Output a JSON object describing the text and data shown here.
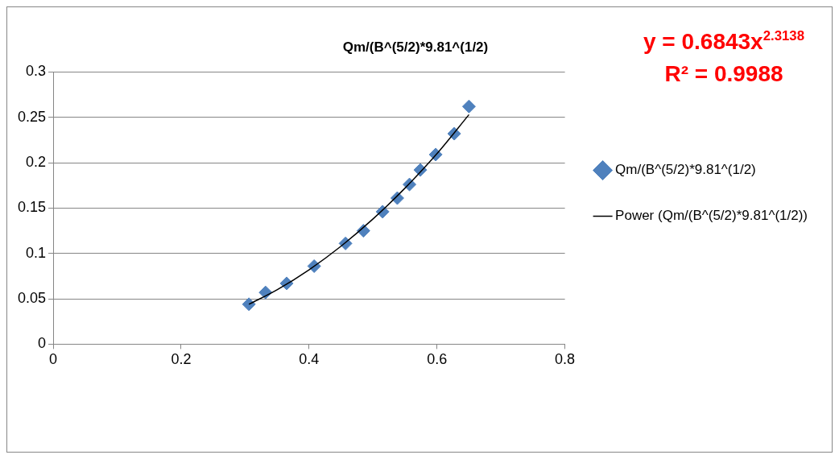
{
  "chart_data": {
    "type": "scatter",
    "title": "Qm/(B^(5/2)*9.81^(1/2)",
    "xlim": [
      0,
      0.8
    ],
    "xticks": [
      0,
      0.2,
      0.4,
      0.6,
      0.8
    ],
    "ylim": [
      0,
      0.3
    ],
    "yticks": [
      0,
      0.05,
      0.1,
      0.15,
      0.2,
      0.25,
      0.3
    ],
    "grid": "y",
    "legend": "right",
    "annotations": [
      "y = 0.6843x$^{2.3138}$",
      "R² = 0.9988"
    ],
    "series": [
      {
        "name": "Qm/(B^(5/2)*9.81^(1/2)",
        "type": "scatter",
        "color": "#4f81bd",
        "marker": "diamond",
        "x": [
          0.306,
          0.332,
          0.365,
          0.408,
          0.457,
          0.485,
          0.515,
          0.538,
          0.557,
          0.574,
          0.598,
          0.627,
          0.65
        ],
        "values": [
          0.044,
          0.057,
          0.067,
          0.086,
          0.111,
          0.125,
          0.146,
          0.161,
          0.176,
          0.192,
          0.209,
          0.232,
          0.262
        ]
      },
      {
        "name": "Power (Qm/(B^(5/2)*9.81^(1/2))",
        "type": "line",
        "color": "#000000",
        "marker": "none",
        "line_style": "solid",
        "x": [
          0.306,
          0.35,
          0.4,
          0.45,
          0.5,
          0.55,
          0.6,
          0.65
        ],
        "values": [
          0.044,
          0.06,
          0.082,
          0.108,
          0.138,
          0.172,
          0.21,
          0.253
        ]
      }
    ]
  }
}
